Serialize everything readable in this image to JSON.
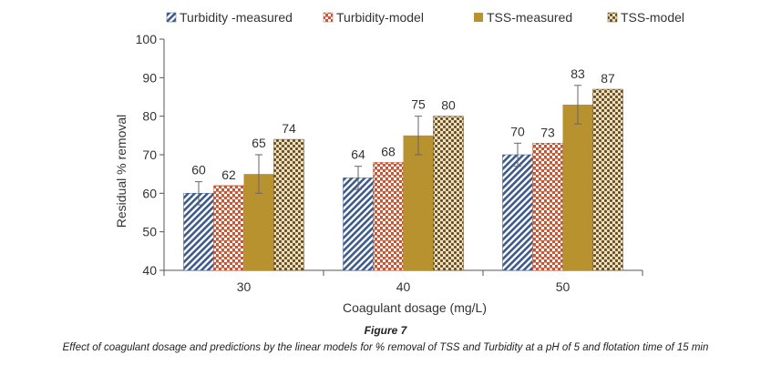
{
  "chart_data": {
    "type": "bar",
    "title": "",
    "xlabel": "Coagulant dosage (mg/L)",
    "ylabel": "Residual % removal",
    "ylim": [
      40,
      100
    ],
    "yticks": [
      40,
      50,
      60,
      70,
      80,
      90,
      100
    ],
    "categories": [
      "30",
      "40",
      "50"
    ],
    "legend_position": "top",
    "grid": false,
    "series": [
      {
        "name": "Turbidity -measured",
        "values": [
          60,
          64,
          70
        ],
        "error": [
          3,
          3,
          3
        ],
        "color": "#3d5a8a",
        "pattern": "diagonal-stripes"
      },
      {
        "name": "Turbidity-model",
        "values": [
          62,
          68,
          73
        ],
        "color": "#c0583a",
        "pattern": "checker"
      },
      {
        "name": "TSS-measured",
        "values": [
          65,
          75,
          83
        ],
        "error": [
          5,
          5,
          5
        ],
        "color": "#b8922e",
        "pattern": "solid"
      },
      {
        "name": "TSS-model",
        "values": [
          74,
          80,
          87
        ],
        "color": "#6b4d1e",
        "pattern": "dots"
      }
    ]
  },
  "caption": {
    "figure_label": "Figure 7",
    "text": "Effect of coagulant dosage and predictions by the linear models for % removal of TSS and Turbidity at a pH of 5 and flotation time of 15 min"
  }
}
